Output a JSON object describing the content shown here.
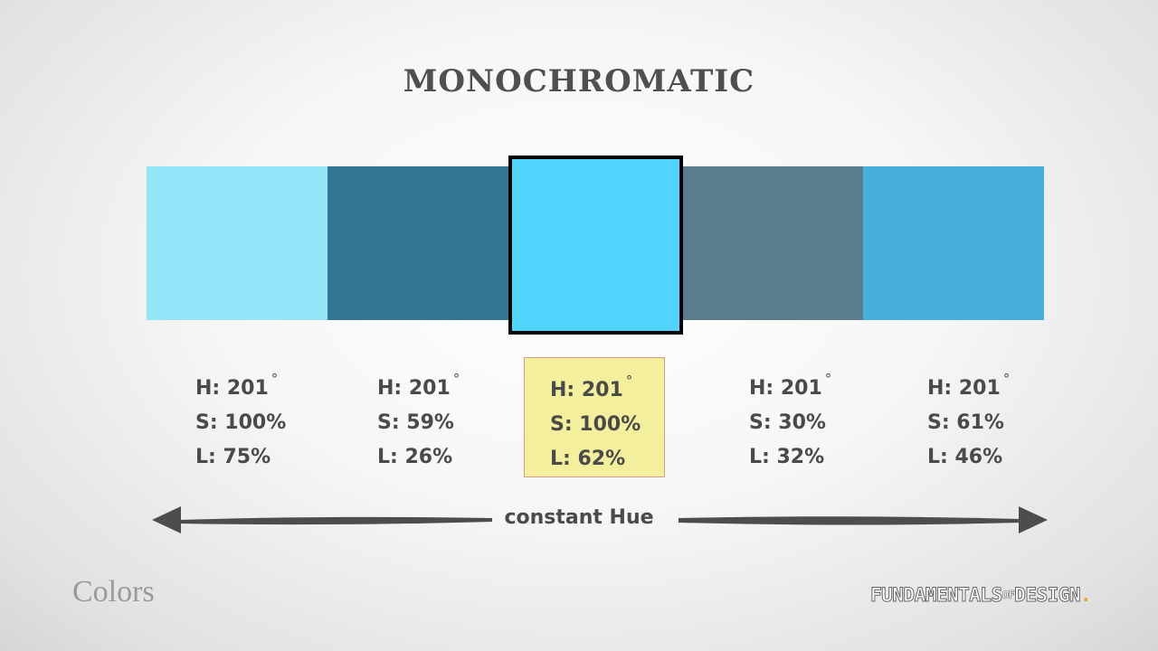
{
  "title": "MONOCHROMATIC",
  "swatches": [
    {
      "color": "#95e5f9",
      "hue": "H: 201",
      "saturation": "S: 100%",
      "lightness": "L: 75%"
    },
    {
      "color": "#337592",
      "hue": "H: 201",
      "saturation": "S: 59%",
      "lightness": "L: 26%"
    },
    {
      "color": "#50d4fb",
      "hue": "H: 201",
      "saturation": "S: 100%",
      "lightness": "L: 62%",
      "selected": true
    },
    {
      "color": "#5a7d8e",
      "hue": "H: 201",
      "saturation": "S: 30%",
      "lightness": "L: 32%"
    },
    {
      "color": "#48afdc",
      "hue": "H: 201",
      "saturation": "S: 61%",
      "lightness": "L: 46%"
    }
  ],
  "degree_symbol": "°",
  "arrow_label": "constant Hue",
  "footer": {
    "section": "Colors",
    "brand_part1": "FUNDAMENTALS",
    "brand_of": "OF",
    "brand_part2": "DESIGN",
    "brand_dot": "."
  },
  "colors": {
    "selected_label_bg": "#f3ef9c",
    "text": "#4a4a4a",
    "arrow": "#4d4d4d"
  }
}
